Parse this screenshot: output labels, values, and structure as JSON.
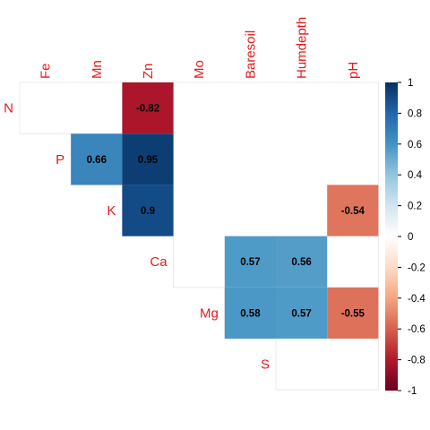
{
  "chart_data": {
    "type": "heatmap",
    "variant": "correlation-matrix-upper",
    "columns": [
      "Fe",
      "Mn",
      "Zn",
      "Mo",
      "Baresoil",
      "Humdepth",
      "pH"
    ],
    "rows": [
      "N",
      "P",
      "K",
      "Ca",
      "Mg",
      "S"
    ],
    "cells": [
      {
        "row": "N",
        "col": "Zn",
        "value": -0.82,
        "label": "-0.82"
      },
      {
        "row": "P",
        "col": "Mn",
        "value": 0.66,
        "label": "0.66"
      },
      {
        "row": "P",
        "col": "Zn",
        "value": 0.95,
        "label": "0.95"
      },
      {
        "row": "K",
        "col": "Zn",
        "value": 0.9,
        "label": "0.9"
      },
      {
        "row": "K",
        "col": "pH",
        "value": -0.54,
        "label": "-0.54"
      },
      {
        "row": "Ca",
        "col": "Baresoil",
        "value": 0.57,
        "label": "0.57"
      },
      {
        "row": "Ca",
        "col": "Humdepth",
        "value": 0.56,
        "label": "0.56"
      },
      {
        "row": "Mg",
        "col": "Baresoil",
        "value": 0.58,
        "label": "0.58"
      },
      {
        "row": "Mg",
        "col": "Humdepth",
        "value": 0.57,
        "label": "0.57"
      },
      {
        "row": "Mg",
        "col": "pH",
        "value": -0.55,
        "label": "-0.55"
      }
    ],
    "colorbar": {
      "range": [
        -1,
        1
      ],
      "ticks": [
        "1",
        "0.8",
        "0.6",
        "0.4",
        "0.2",
        "0",
        "-0.2",
        "-0.4",
        "-0.6",
        "-0.8",
        "-1"
      ],
      "tick_values": [
        1,
        0.8,
        0.6,
        0.4,
        0.2,
        0,
        -0.2,
        -0.4,
        -0.6,
        -0.8,
        -1
      ],
      "colors": [
        "#67001F",
        "#B2182B",
        "#D6604D",
        "#F4A582",
        "#FDDBC7",
        "#FFFFFF",
        "#D1E5F0",
        "#92C5DE",
        "#4393C3",
        "#2166AC",
        "#053061"
      ]
    },
    "label_color": "#e41a1c",
    "grid": false,
    "legend_position": "right"
  }
}
